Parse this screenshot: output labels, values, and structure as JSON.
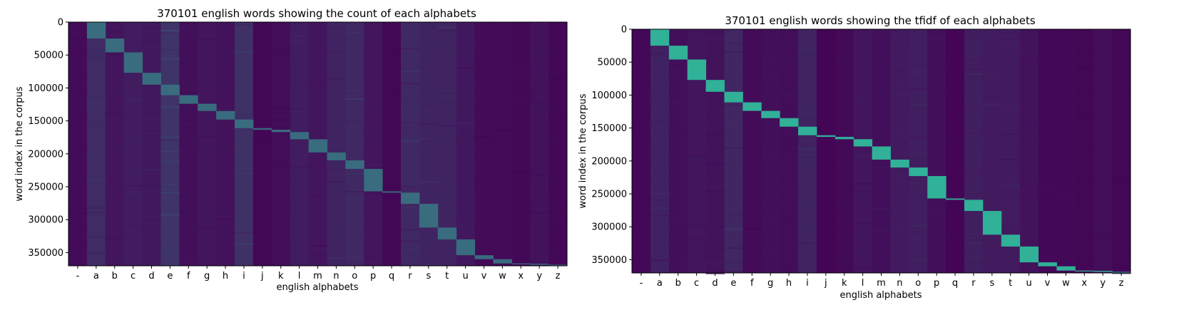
{
  "chart_data": [
    {
      "type": "heatmap",
      "title": "370101 english words showing the count of each alphabets",
      "xlabel": "english alphabets",
      "ylabel": "word index in the corpus",
      "x_categories": [
        "-",
        "a",
        "b",
        "c",
        "d",
        "e",
        "f",
        "g",
        "h",
        "i",
        "j",
        "k",
        "l",
        "m",
        "n",
        "o",
        "p",
        "q",
        "r",
        "s",
        "t",
        "u",
        "v",
        "w",
        "x",
        "y",
        "z"
      ],
      "y_range": [
        0,
        370101
      ],
      "y_ticks": [
        0,
        50000,
        100000,
        150000,
        200000,
        250000,
        300000,
        350000
      ],
      "y_tick_labels": [
        "0",
        "50000",
        "100000",
        "150000",
        "200000",
        "250000",
        "300000",
        "350000"
      ],
      "colormap": "viridis",
      "color_low": "#440154",
      "color_high": "#2ec4a0",
      "grid": false,
      "first_letter_ranges": [
        {
          "letter": "a",
          "start": 0,
          "end": 25000
        },
        {
          "letter": "b",
          "start": 25000,
          "end": 46000
        },
        {
          "letter": "c",
          "start": 46000,
          "end": 77000
        },
        {
          "letter": "d",
          "start": 77000,
          "end": 95000
        },
        {
          "letter": "e",
          "start": 95000,
          "end": 111000
        },
        {
          "letter": "f",
          "start": 111000,
          "end": 124000
        },
        {
          "letter": "g",
          "start": 124000,
          "end": 135000
        },
        {
          "letter": "h",
          "start": 135000,
          "end": 148000
        },
        {
          "letter": "i",
          "start": 148000,
          "end": 161000
        },
        {
          "letter": "j",
          "start": 161000,
          "end": 163500
        },
        {
          "letter": "k",
          "start": 163500,
          "end": 167000
        },
        {
          "letter": "l",
          "start": 167000,
          "end": 178000
        },
        {
          "letter": "m",
          "start": 178000,
          "end": 198000
        },
        {
          "letter": "n",
          "start": 198000,
          "end": 210000
        },
        {
          "letter": "o",
          "start": 210000,
          "end": 223000
        },
        {
          "letter": "p",
          "start": 223000,
          "end": 257000
        },
        {
          "letter": "q",
          "start": 257000,
          "end": 259000
        },
        {
          "letter": "r",
          "start": 259000,
          "end": 276000
        },
        {
          "letter": "s",
          "start": 276000,
          "end": 312000
        },
        {
          "letter": "t",
          "start": 312000,
          "end": 330000
        },
        {
          "letter": "u",
          "start": 330000,
          "end": 354000
        },
        {
          "letter": "v",
          "start": 354000,
          "end": 360000
        },
        {
          "letter": "w",
          "start": 360000,
          "end": 366500
        },
        {
          "letter": "x",
          "start": 366500,
          "end": 367000
        },
        {
          "letter": "y",
          "start": 367000,
          "end": 368500
        },
        {
          "letter": "z",
          "start": 368500,
          "end": 370101
        }
      ]
    },
    {
      "type": "heatmap",
      "title": "370101 english words showing the tfidf of each alphabets",
      "xlabel": "english alphabets",
      "ylabel": "word index in the corpus",
      "x_categories": [
        "-",
        "a",
        "b",
        "c",
        "d",
        "e",
        "f",
        "g",
        "h",
        "i",
        "j",
        "k",
        "l",
        "m",
        "n",
        "o",
        "p",
        "q",
        "r",
        "s",
        "t",
        "u",
        "v",
        "w",
        "x",
        "y",
        "z"
      ],
      "y_range": [
        0,
        370101
      ],
      "y_ticks": [
        0,
        50000,
        100000,
        150000,
        200000,
        250000,
        300000,
        350000
      ],
      "y_tick_labels": [
        "0",
        "50000",
        "100000",
        "150000",
        "200000",
        "250000",
        "300000",
        "350000"
      ],
      "colormap": "viridis",
      "color_low": "#440154",
      "color_high": "#2ec4a0",
      "grid": false,
      "first_letter_ranges": [
        {
          "letter": "a",
          "start": 0,
          "end": 25000
        },
        {
          "letter": "b",
          "start": 25000,
          "end": 46000
        },
        {
          "letter": "c",
          "start": 46000,
          "end": 77000
        },
        {
          "letter": "d",
          "start": 77000,
          "end": 95000
        },
        {
          "letter": "e",
          "start": 95000,
          "end": 111000
        },
        {
          "letter": "f",
          "start": 111000,
          "end": 124000
        },
        {
          "letter": "g",
          "start": 124000,
          "end": 135000
        },
        {
          "letter": "h",
          "start": 135000,
          "end": 148000
        },
        {
          "letter": "i",
          "start": 148000,
          "end": 161000
        },
        {
          "letter": "j",
          "start": 161000,
          "end": 163500
        },
        {
          "letter": "k",
          "start": 163500,
          "end": 167000
        },
        {
          "letter": "l",
          "start": 167000,
          "end": 178000
        },
        {
          "letter": "m",
          "start": 178000,
          "end": 198000
        },
        {
          "letter": "n",
          "start": 198000,
          "end": 210000
        },
        {
          "letter": "o",
          "start": 210000,
          "end": 223000
        },
        {
          "letter": "p",
          "start": 223000,
          "end": 257000
        },
        {
          "letter": "q",
          "start": 257000,
          "end": 259000
        },
        {
          "letter": "r",
          "start": 259000,
          "end": 276000
        },
        {
          "letter": "s",
          "start": 276000,
          "end": 312000
        },
        {
          "letter": "t",
          "start": 312000,
          "end": 330000
        },
        {
          "letter": "u",
          "start": 330000,
          "end": 354000
        },
        {
          "letter": "v",
          "start": 354000,
          "end": 360000
        },
        {
          "letter": "w",
          "start": 360000,
          "end": 366500
        },
        {
          "letter": "x",
          "start": 366500,
          "end": 367000
        },
        {
          "letter": "y",
          "start": 367000,
          "end": 368500
        },
        {
          "letter": "z",
          "start": 368500,
          "end": 370101
        }
      ]
    }
  ]
}
